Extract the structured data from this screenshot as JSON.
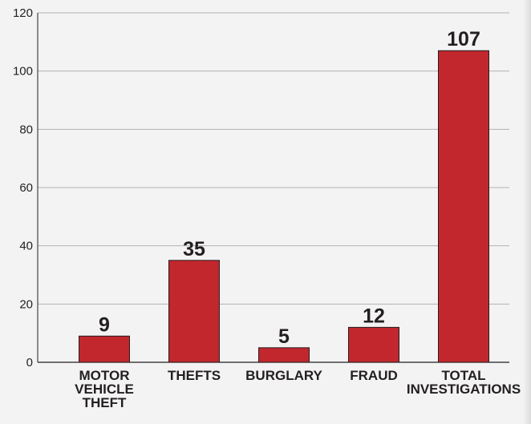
{
  "chart_data": {
    "type": "bar",
    "title": "",
    "xlabel": "",
    "ylabel": "",
    "categories": [
      "MOTOR VEHICLE THEFT",
      "THEFTS",
      "BURGLARY",
      "FRAUD",
      "TOTAL INVESTIGATIONS"
    ],
    "category_lines": [
      [
        "MOTOR",
        "VEHICLE",
        "THEFT"
      ],
      [
        "THEFTS"
      ],
      [
        "BURGLARY"
      ],
      [
        "FRAUD"
      ],
      [
        "TOTAL",
        "INVESTIGATIONS"
      ]
    ],
    "values": [
      9,
      35,
      5,
      12,
      107
    ],
    "value_labels": [
      "9",
      "35",
      "5",
      "12",
      "107"
    ],
    "ylim": [
      0,
      120
    ],
    "yticks": [
      0,
      20,
      40,
      60,
      80,
      100,
      120
    ],
    "ytick_labels": [
      "0",
      "20",
      "40",
      "60",
      "80",
      "100",
      "120"
    ],
    "grid": true,
    "legend": "none",
    "bar_color": "#c1272d",
    "bar_edge_color": "#231f20",
    "grid_color": "#b3b3b3",
    "text_color": "#231f20"
  }
}
